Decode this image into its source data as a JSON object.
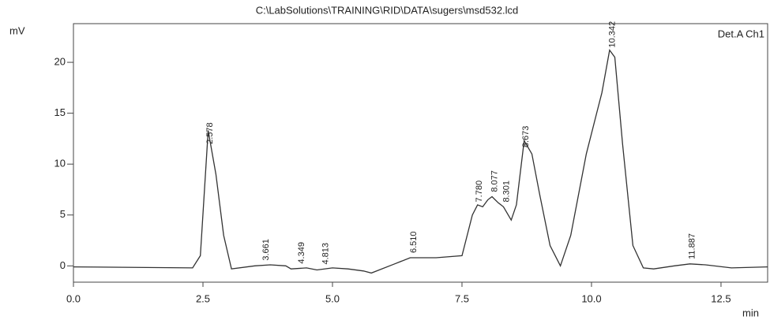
{
  "chart_data": {
    "type": "line",
    "title": "C:\\LabSolutions\\TRAINING\\RID\\DATA\\sugers\\msd532.lcd",
    "y_label": "mV",
    "x_label": "min",
    "detector": "Det.A Ch1",
    "color": "#333333",
    "x": [
      0,
      2.3,
      2.45,
      2.6,
      2.75,
      2.9,
      3.05,
      3.5,
      3.8,
      4.1,
      4.2,
      4.5,
      4.7,
      5.0,
      5.3,
      5.6,
      5.75,
      6.2,
      6.5,
      7.0,
      7.5,
      7.7,
      7.8,
      7.9,
      8.0,
      8.08,
      8.2,
      8.3,
      8.45,
      8.55,
      8.7,
      8.85,
      9.0,
      9.2,
      9.4,
      9.6,
      9.9,
      10.1,
      10.2,
      10.35,
      10.45,
      10.6,
      10.8,
      11.0,
      11.2,
      11.6,
      11.9,
      12.2,
      12.7,
      13.4
    ],
    "values": [
      -0.1,
      -0.2,
      1,
      13.3,
      9,
      3,
      -0.3,
      0.0,
      0.1,
      0.0,
      -0.3,
      -0.2,
      -0.4,
      -0.2,
      -0.3,
      -0.5,
      -0.7,
      0.2,
      0.8,
      0.8,
      1.0,
      5.0,
      6.0,
      5.8,
      6.5,
      6.8,
      6.2,
      5.8,
      4.5,
      6,
      12.3,
      11,
      7,
      2,
      0.0,
      3,
      11,
      15,
      17,
      21.2,
      20.5,
      12,
      2,
      -0.2,
      -0.3,
      0,
      0.2,
      0.1,
      -0.2,
      -0.1
    ],
    "peak_labels": [
      2.578,
      3.661,
      4.349,
      4.813,
      {
        "value": 6.51,
        "label": "6.510"
      },
      {
        "value": 7.78,
        "label": "7.780"
      },
      8.077,
      8.301,
      8.673,
      10.342,
      11.887
    ],
    "xlim": [
      0,
      13.4
    ],
    "ylim": [
      -1.6,
      23.8
    ],
    "xticks": [
      {
        "value": 0,
        "label": "0.0"
      },
      2.5,
      {
        "value": 5,
        "label": "5.0"
      },
      7.5,
      {
        "value": 10,
        "label": "10.0"
      },
      12.5
    ],
    "yticks": [
      0,
      5,
      10,
      15,
      20
    ]
  }
}
